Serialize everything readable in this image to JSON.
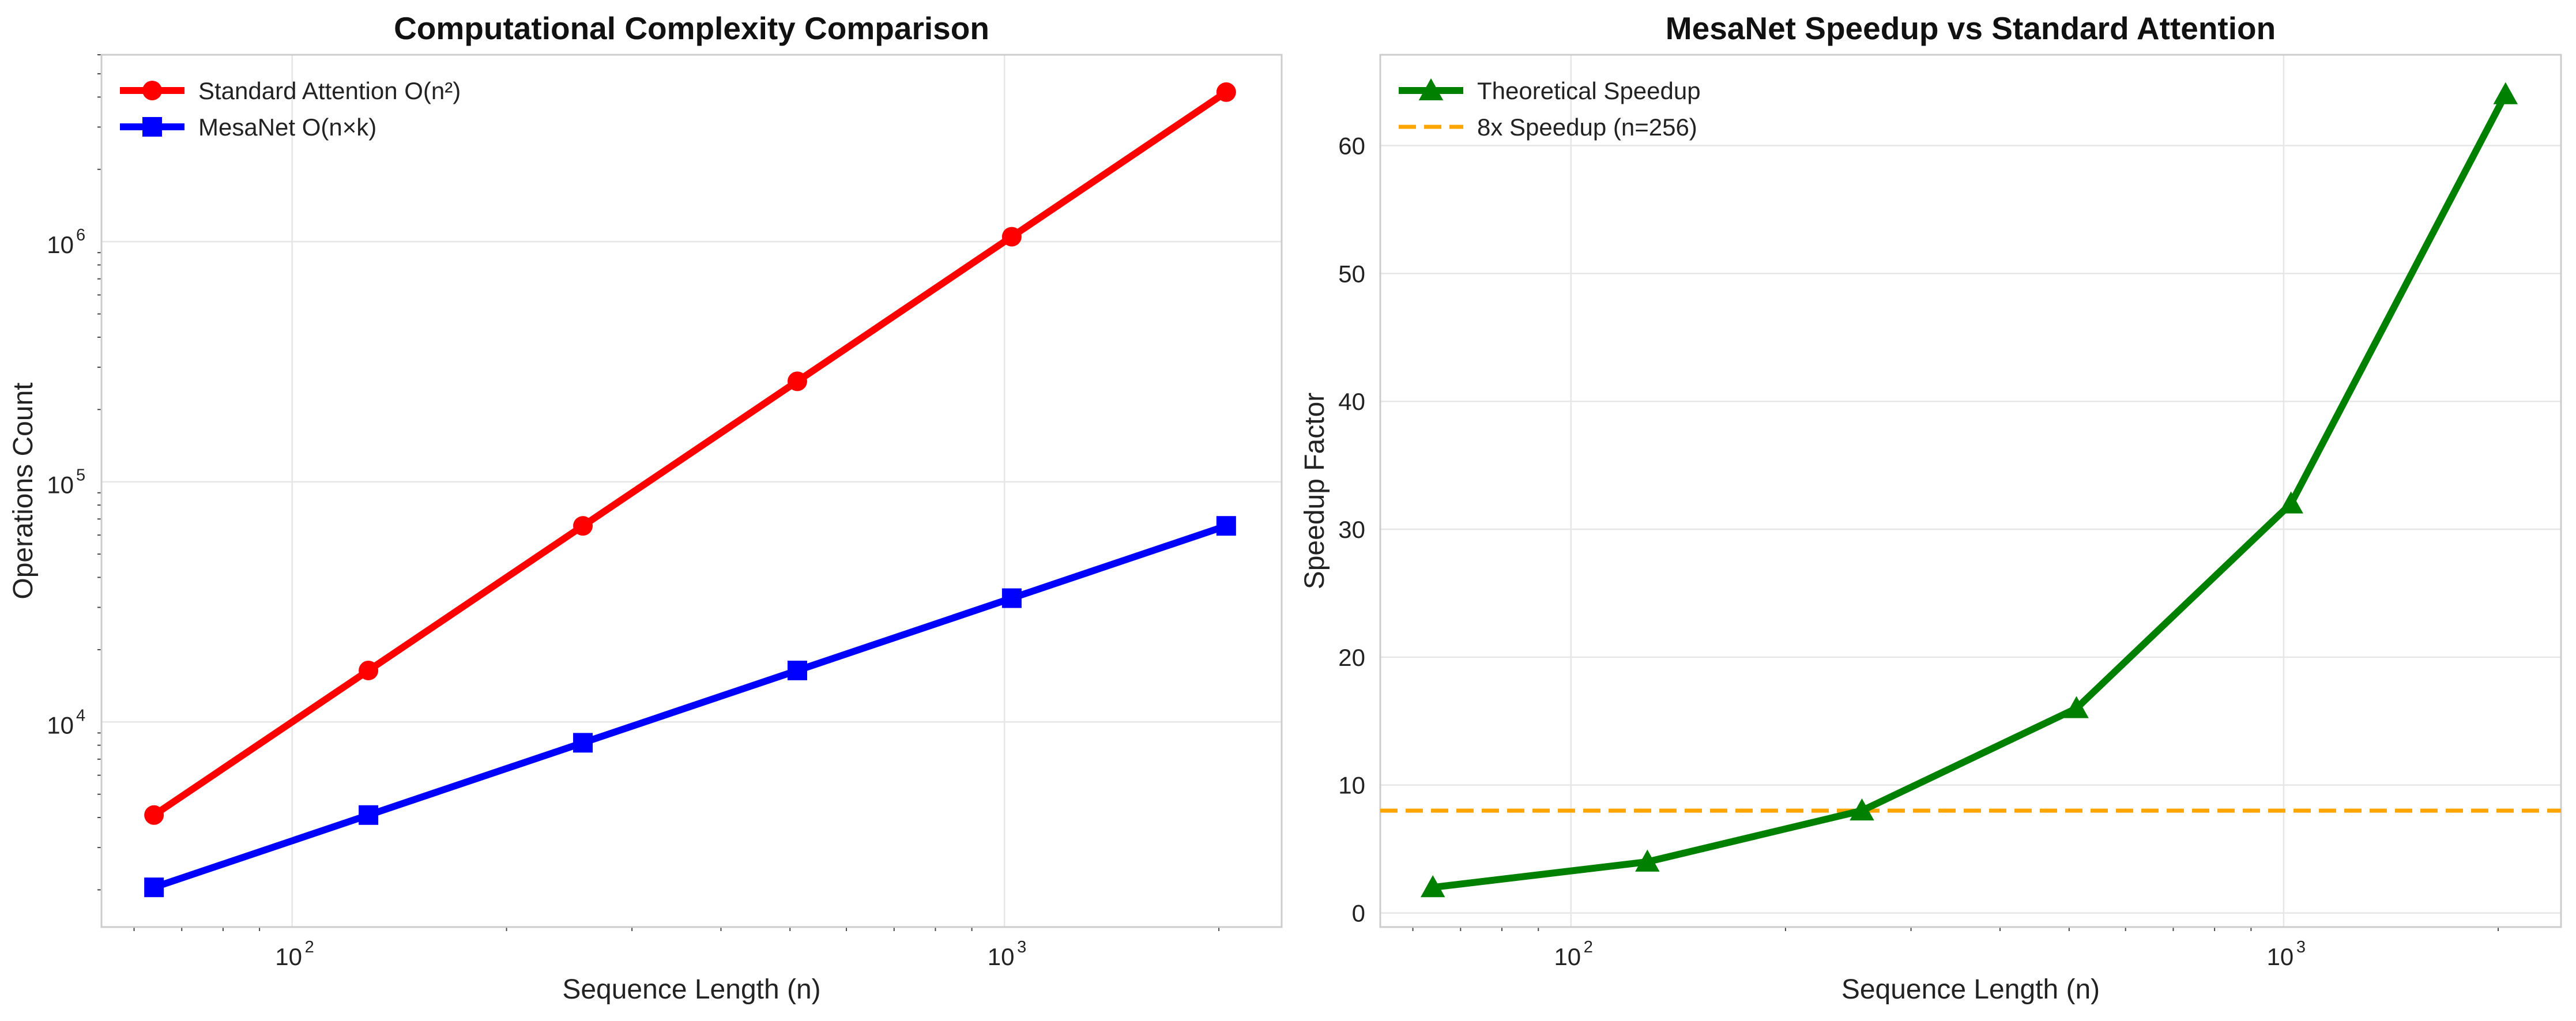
{
  "chart_data": [
    {
      "type": "line",
      "title": "Computational Complexity Comparison",
      "xlabel": "Sequence Length (n)",
      "ylabel": "Operations Count",
      "xscale": "log",
      "yscale": "log",
      "xlim": [
        54,
        2450
      ],
      "ylim": [
        1400,
        6000000
      ],
      "x_ticks": [
        {
          "value": 100,
          "base": "10",
          "exp": "2"
        },
        {
          "value": 1000,
          "base": "10",
          "exp": "3"
        }
      ],
      "y_ticks": [
        {
          "value": 10000,
          "base": "10",
          "exp": "4"
        },
        {
          "value": 100000,
          "base": "10",
          "exp": "5"
        },
        {
          "value": 1000000,
          "base": "10",
          "exp": "6"
        }
      ],
      "grid": true,
      "legend": "top-left",
      "x": [
        64,
        128,
        256,
        512,
        1024,
        2048
      ],
      "series": [
        {
          "name": "Standard Attention O(n²)",
          "values": [
            4096,
            16384,
            65536,
            262144,
            1048576,
            4194304
          ],
          "color": "#ff0000",
          "marker": "circle"
        },
        {
          "name": "MesaNet O(n×k)",
          "values": [
            2048,
            4096,
            8192,
            16384,
            32768,
            65536
          ],
          "color": "#0000ff",
          "marker": "square"
        }
      ]
    },
    {
      "type": "line",
      "title": "MesaNet Speedup vs Standard Attention",
      "xlabel": "Sequence Length (n)",
      "ylabel": "Speedup Factor",
      "xscale": "log",
      "yscale": "linear",
      "xlim": [
        54,
        2450
      ],
      "ylim": [
        -1.1,
        67.1
      ],
      "x_ticks": [
        {
          "value": 100,
          "base": "10",
          "exp": "2"
        },
        {
          "value": 1000,
          "base": "10",
          "exp": "3"
        }
      ],
      "y_ticks": [
        0,
        10,
        20,
        30,
        40,
        50,
        60
      ],
      "grid": true,
      "legend": "top-left",
      "x": [
        64,
        128,
        256,
        512,
        1024,
        2048
      ],
      "series": [
        {
          "name": "Theoretical Speedup",
          "values": [
            2,
            4,
            8,
            16,
            32,
            64
          ],
          "color": "#008000",
          "marker": "triangle"
        }
      ],
      "reference_lines": [
        {
          "name": "8x Speedup (n=256)",
          "y": 8,
          "color": "#ffa500",
          "style": "dashed"
        }
      ]
    }
  ]
}
